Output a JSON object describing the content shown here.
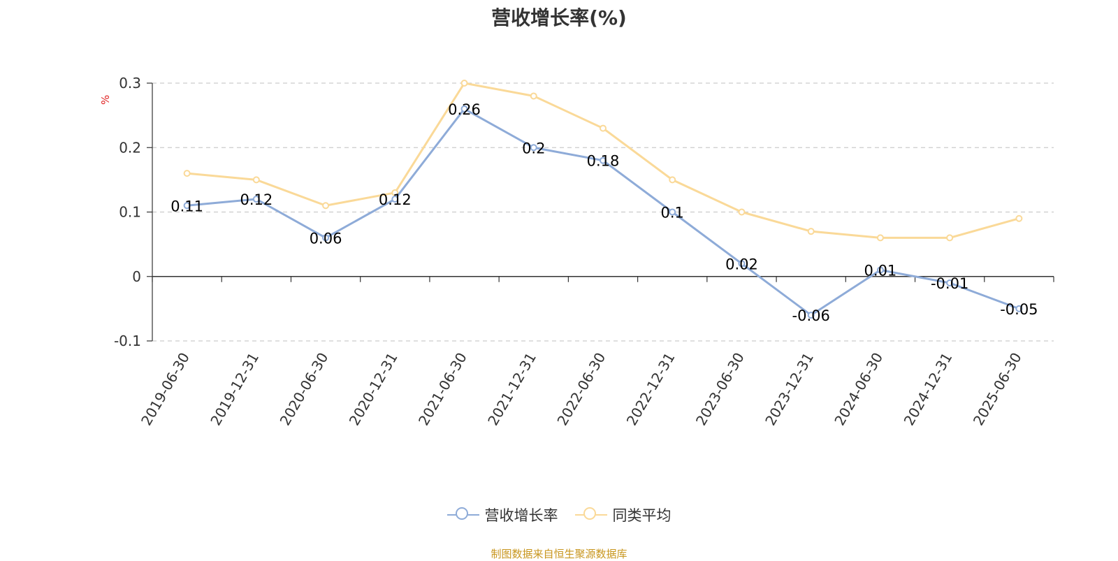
{
  "title": "营收增长率(%)",
  "source": "制图数据来自恒生聚源数据库",
  "chart_data": {
    "type": "line",
    "title": "营收增长率(%)",
    "ylabel": "%",
    "xlabel": "",
    "ylim": [
      -0.1,
      0.3
    ],
    "yticks": [
      "0.3",
      "0.2",
      "0.1",
      "0",
      "-0.1"
    ],
    "grid": true,
    "legend_position": "bottom",
    "categories": [
      "2019-06-30",
      "2019-12-31",
      "2020-06-30",
      "2020-12-31",
      "2021-06-30",
      "2021-12-31",
      "2022-06-30",
      "2022-12-31",
      "2023-06-30",
      "2023-12-31",
      "2024-06-30",
      "2024-12-31",
      "2025-06-30"
    ],
    "series": [
      {
        "name": "营收增长率",
        "color": "#8eabd8",
        "values": [
          0.11,
          0.12,
          0.06,
          0.12,
          0.26,
          0.2,
          0.18,
          0.1,
          0.02,
          -0.06,
          0.01,
          -0.01,
          -0.05
        ],
        "labels": [
          "0.11",
          "0.12",
          "0.06",
          "0.12",
          "0.26",
          "0.2",
          "0.18",
          "0.1",
          "0.02",
          "-0.06",
          "0.01",
          "-0.01",
          "-0.05"
        ]
      },
      {
        "name": "同类平均",
        "color": "#fad998",
        "values": [
          0.16,
          0.15,
          0.11,
          0.13,
          0.3,
          0.28,
          0.23,
          0.15,
          0.1,
          0.07,
          0.06,
          0.06,
          0.09
        ]
      }
    ]
  }
}
